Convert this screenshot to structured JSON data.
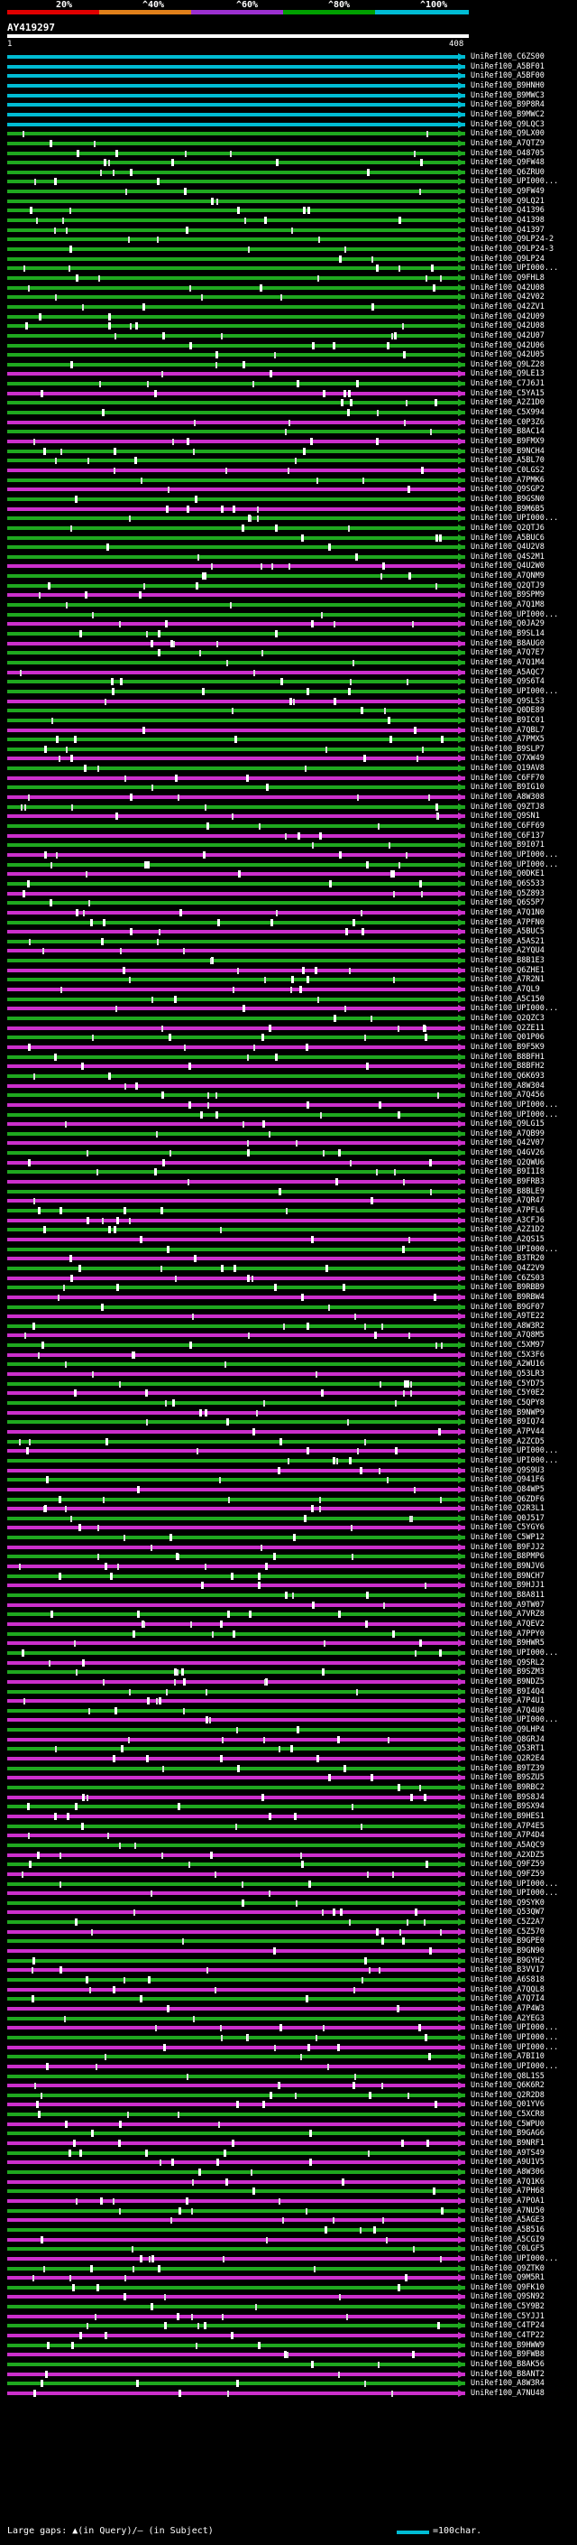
{
  "scale": {
    "labels": [
      "20%",
      "^40%",
      "^60%",
      "^80%",
      "^100%"
    ],
    "colors": [
      "#e00000",
      "#e0801a",
      "#9b30d0",
      "#00a000",
      "#00bcd4"
    ]
  },
  "query": {
    "id": "AY419297",
    "start": "1",
    "end": "408"
  },
  "hit_colors": {
    "cyan": "#00bcd4",
    "green": "#1fa81f",
    "magenta": "#cc2fcc"
  },
  "hits": [
    {
      "name": "UniRef100_C6ZS00",
      "c": "cyan"
    },
    {
      "name": "UniRef100_A5BF01",
      "c": "cyan"
    },
    {
      "name": "UniRef100_A5BF00",
      "c": "cyan"
    },
    {
      "name": "UniRef100_B9HNH0",
      "c": "cyan"
    },
    {
      "name": "UniRef100_B9MWC3",
      "c": "cyan"
    },
    {
      "name": "UniRef100_B9P8R4",
      "c": "cyan"
    },
    {
      "name": "UniRef100_B9MWC2",
      "c": "cyan"
    },
    {
      "name": "UniRef100_Q9LQC3",
      "c": "cyan"
    },
    {
      "name": "UniRef100_Q9LX00",
      "c": "green"
    },
    {
      "name": "UniRef100_A7QTZ9",
      "c": "green"
    },
    {
      "name": "UniRef100_O48705",
      "c": "green"
    },
    {
      "name": "UniRef100_Q9FW48",
      "c": "green"
    },
    {
      "name": "UniRef100_Q6ZRU0",
      "c": "green"
    },
    {
      "name": "UniRef100_UPI000...",
      "c": "green"
    },
    {
      "name": "UniRef100_Q9FW49",
      "c": "green"
    },
    {
      "name": "UniRef100_Q9LQ21",
      "c": "green"
    },
    {
      "name": "UniRef100_Q41396",
      "c": "green"
    },
    {
      "name": "UniRef100_Q41398",
      "c": "green"
    },
    {
      "name": "UniRef100_Q41397",
      "c": "green"
    },
    {
      "name": "UniRef100_Q9LP24-2",
      "c": "green"
    },
    {
      "name": "UniRef100_Q9LP24-3",
      "c": "green"
    },
    {
      "name": "UniRef100_Q9LP24",
      "c": "green"
    },
    {
      "name": "UniRef100_UPI000...",
      "c": "green"
    },
    {
      "name": "UniRef100_Q9FHL8",
      "c": "green"
    },
    {
      "name": "UniRef100_Q42U08",
      "c": "green"
    },
    {
      "name": "UniRef100_Q42V02",
      "c": "green"
    },
    {
      "name": "UniRef100_Q42ZV1",
      "c": "green"
    },
    {
      "name": "UniRef100_Q42U09",
      "c": "green"
    },
    {
      "name": "UniRef100_Q42U08",
      "c": "green"
    },
    {
      "name": "UniRef100_Q42U07",
      "c": "green"
    },
    {
      "name": "UniRef100_Q42U06",
      "c": "green"
    },
    {
      "name": "UniRef100_Q42U05",
      "c": "green"
    },
    {
      "name": "UniRef100_Q9LZ28",
      "c": "green"
    },
    {
      "name": "UniRef100_Q9LE13",
      "c": "magenta"
    },
    {
      "name": "UniRef100_C7J6J1",
      "c": "green"
    },
    {
      "name": "UniRef100_C5YA15",
      "c": "magenta"
    },
    {
      "name": "UniRef100_A2Z1D0",
      "c": "green"
    },
    {
      "name": "UniRef100_C5X994",
      "c": "green"
    },
    {
      "name": "UniRef100_C0P3Z6",
      "c": "magenta"
    },
    {
      "name": "UniRef100_B8AC14",
      "c": "green"
    },
    {
      "name": "UniRef100_B9FMX9",
      "c": "magenta"
    },
    {
      "name": "UniRef100_B9NCH4",
      "c": "green"
    },
    {
      "name": "UniRef100_A5BL70",
      "c": "green"
    },
    {
      "name": "UniRef100_C0LGS2",
      "c": "magenta"
    },
    {
      "name": "UniRef100_A7PMK6",
      "c": "green"
    },
    {
      "name": "UniRef100_Q9SGP2",
      "c": "magenta"
    },
    {
      "name": "UniRef100_B9GSN0",
      "c": "green"
    },
    {
      "name": "UniRef100_B9M6B5",
      "c": "magenta"
    },
    {
      "name": "UniRef100_UPI000...",
      "c": "green"
    },
    {
      "name": "UniRef100_Q2QTJ6",
      "c": "green"
    },
    {
      "name": "UniRef100_A5BUC6",
      "c": "green"
    },
    {
      "name": "UniRef100_Q4U2V8",
      "c": "green"
    },
    {
      "name": "UniRef100_Q4S2M1",
      "c": "green"
    },
    {
      "name": "UniRef100_Q4U2W0",
      "c": "magenta"
    },
    {
      "name": "UniRef100_A7QNM9",
      "c": "green"
    },
    {
      "name": "UniRef100_Q2QTJ9",
      "c": "green"
    },
    {
      "name": "UniRef100_B9SPM9",
      "c": "magenta"
    },
    {
      "name": "UniRef100_A7Q1M8",
      "c": "green"
    },
    {
      "name": "UniRef100_UPI000...",
      "c": "green"
    },
    {
      "name": "UniRef100_Q0JA29",
      "c": "magenta"
    },
    {
      "name": "UniRef100_B9SL14",
      "c": "green"
    },
    {
      "name": "UniRef100_B8AUG0",
      "c": "magenta"
    },
    {
      "name": "UniRef100_A7Q7E7",
      "c": "green"
    },
    {
      "name": "UniRef100_A7Q1M4",
      "c": "green"
    },
    {
      "name": "UniRef100_A5AQC7",
      "c": "magenta"
    },
    {
      "name": "UniRef100_Q9S6T4",
      "c": "green"
    },
    {
      "name": "UniRef100_UPI000...",
      "c": "green"
    },
    {
      "name": "UniRef100_Q9SLS3",
      "c": "magenta"
    },
    {
      "name": "UniRef100_Q0DE89",
      "c": "green"
    },
    {
      "name": "UniRef100_B9IC01",
      "c": "green"
    },
    {
      "name": "UniRef100_A7QBL7",
      "c": "magenta"
    },
    {
      "name": "UniRef100_A7PMX5",
      "c": "green"
    },
    {
      "name": "UniRef100_B9SLP7",
      "c": "green"
    },
    {
      "name": "UniRef100_Q7XW49",
      "c": "magenta"
    },
    {
      "name": "UniRef100_Q19AV8",
      "c": "green"
    },
    {
      "name": "UniRef100_C6FF70",
      "c": "magenta"
    },
    {
      "name": "UniRef100_B9IG10",
      "c": "green"
    },
    {
      "name": "UniRef100_A8W308",
      "c": "magenta"
    },
    {
      "name": "UniRef100_Q9ZTJ8",
      "c": "green"
    },
    {
      "name": "UniRef100_Q9SN1",
      "c": "magenta"
    },
    {
      "name": "UniRef100_C6FF69",
      "c": "green"
    },
    {
      "name": "UniRef100_C6F137",
      "c": "magenta"
    },
    {
      "name": "UniRef100_B9I071",
      "c": "green"
    },
    {
      "name": "UniRef100_UPI000...",
      "c": "magenta"
    },
    {
      "name": "UniRef100_UPI000...",
      "c": "green"
    },
    {
      "name": "UniRef100_Q0DKE1",
      "c": "magenta"
    },
    {
      "name": "UniRef100_Q6S533",
      "c": "green"
    },
    {
      "name": "UniRef100_Q5Z893",
      "c": "magenta"
    },
    {
      "name": "UniRef100_Q6S5P7",
      "c": "green"
    },
    {
      "name": "UniRef100_A7Q1N0",
      "c": "magenta"
    },
    {
      "name": "UniRef100_A7PFN0",
      "c": "green"
    },
    {
      "name": "UniRef100_A5BUC5",
      "c": "magenta"
    },
    {
      "name": "UniRef100_A5AS21",
      "c": "green"
    },
    {
      "name": "UniRef100_A2YQU4",
      "c": "magenta"
    },
    {
      "name": "UniRef100_B8B1E3",
      "c": "green"
    },
    {
      "name": "UniRef100_Q6ZHE1",
      "c": "magenta"
    },
    {
      "name": "UniRef100_A7R2N1",
      "c": "green"
    },
    {
      "name": "UniRef100_A7QL9",
      "c": "magenta"
    },
    {
      "name": "UniRef100_A5C150",
      "c": "green"
    },
    {
      "name": "UniRef100_UPI000...",
      "c": "magenta"
    },
    {
      "name": "UniRef100_Q2QZC3",
      "c": "green"
    },
    {
      "name": "UniRef100_Q2ZE11",
      "c": "magenta"
    },
    {
      "name": "UniRef100_Q01P06",
      "c": "green"
    },
    {
      "name": "UniRef100_B9F5K9",
      "c": "magenta"
    },
    {
      "name": "UniRef100_B8BFH1",
      "c": "green"
    },
    {
      "name": "UniRef100_B8BFH2",
      "c": "magenta"
    },
    {
      "name": "UniRef100_Q6K693",
      "c": "green"
    },
    {
      "name": "UniRef100_A8W304",
      "c": "magenta"
    },
    {
      "name": "UniRef100_A7Q456",
      "c": "green"
    },
    {
      "name": "UniRef100_UPI000...",
      "c": "magenta"
    },
    {
      "name": "UniRef100_UPI000...",
      "c": "green"
    },
    {
      "name": "UniRef100_Q9LG15",
      "c": "magenta"
    },
    {
      "name": "UniRef100_A7QB99",
      "c": "green"
    },
    {
      "name": "UniRef100_Q42V07",
      "c": "magenta"
    },
    {
      "name": "UniRef100_Q4GV26",
      "c": "green"
    },
    {
      "name": "UniRef100_Q2QWU6",
      "c": "magenta"
    },
    {
      "name": "UniRef100_B9I1I8",
      "c": "green"
    },
    {
      "name": "UniRef100_B9FRB3",
      "c": "magenta"
    },
    {
      "name": "UniRef100_B8BLE9",
      "c": "green"
    },
    {
      "name": "UniRef100_A7QR47",
      "c": "magenta"
    },
    {
      "name": "UniRef100_A7PFL6",
      "c": "green"
    },
    {
      "name": "UniRef100_A3CFJ6",
      "c": "magenta"
    },
    {
      "name": "UniRef100_A2Z1D2",
      "c": "green"
    },
    {
      "name": "UniRef100_A2QS15",
      "c": "magenta"
    },
    {
      "name": "UniRef100_UPI000...",
      "c": "green"
    },
    {
      "name": "UniRef100_B3TR20",
      "c": "magenta"
    },
    {
      "name": "UniRef100_Q4Z2V9",
      "c": "green"
    },
    {
      "name": "UniRef100_C6ZS03",
      "c": "magenta"
    },
    {
      "name": "UniRef100_B9RBB9",
      "c": "green"
    },
    {
      "name": "UniRef100_B9RBW4",
      "c": "magenta"
    },
    {
      "name": "UniRef100_B9GF07",
      "c": "green"
    },
    {
      "name": "UniRef100_A9TE22",
      "c": "magenta"
    },
    {
      "name": "UniRef100_A8W3R2",
      "c": "green"
    },
    {
      "name": "UniRef100_A7Q8M5",
      "c": "magenta"
    },
    {
      "name": "UniRef100_C5XM97",
      "c": "green"
    },
    {
      "name": "UniRef100_C5X3F6",
      "c": "magenta"
    },
    {
      "name": "UniRef100_A2WU16",
      "c": "green"
    },
    {
      "name": "UniRef100_Q53LR3",
      "c": "magenta"
    },
    {
      "name": "UniRef100_C5YD75",
      "c": "green"
    },
    {
      "name": "UniRef100_C5Y0E2",
      "c": "magenta"
    },
    {
      "name": "UniRef100_C5QPY8",
      "c": "green"
    },
    {
      "name": "UniRef100_B9NWP9",
      "c": "magenta"
    },
    {
      "name": "UniRef100_B9IQ74",
      "c": "green"
    },
    {
      "name": "UniRef100_A7PV44",
      "c": "magenta"
    },
    {
      "name": "UniRef100_A2ZCD5",
      "c": "green"
    },
    {
      "name": "UniRef100_UPI000...",
      "c": "magenta"
    },
    {
      "name": "UniRef100_UPI000...",
      "c": "green"
    },
    {
      "name": "UniRef100_Q9S9U3",
      "c": "magenta"
    },
    {
      "name": "UniRef100_Q941F6",
      "c": "green"
    },
    {
      "name": "UniRef100_Q84WP5",
      "c": "magenta"
    },
    {
      "name": "UniRef100_Q6ZDF6",
      "c": "green"
    },
    {
      "name": "UniRef100_Q2R3L1",
      "c": "magenta"
    },
    {
      "name": "UniRef100_Q0J517",
      "c": "green"
    },
    {
      "name": "UniRef100_C5YGY6",
      "c": "magenta"
    },
    {
      "name": "UniRef100_C5WP12",
      "c": "green"
    },
    {
      "name": "UniRef100_B9FJJ2",
      "c": "magenta"
    },
    {
      "name": "UniRef100_B8PMP6",
      "c": "green"
    },
    {
      "name": "UniRef100_B9NJV6",
      "c": "magenta"
    },
    {
      "name": "UniRef100_B9NCH7",
      "c": "green"
    },
    {
      "name": "UniRef100_B9HJJ1",
      "c": "magenta"
    },
    {
      "name": "UniRef100_B8A811",
      "c": "green"
    },
    {
      "name": "UniRef100_A9TW07",
      "c": "magenta"
    },
    {
      "name": "UniRef100_A7VRZ8",
      "c": "green"
    },
    {
      "name": "UniRef100_A7QEV2",
      "c": "magenta"
    },
    {
      "name": "UniRef100_A7PPY0",
      "c": "green"
    },
    {
      "name": "UniRef100_B9HWR5",
      "c": "magenta"
    },
    {
      "name": "UniRef100_UPI000...",
      "c": "green"
    },
    {
      "name": "UniRef100_Q9SRL2",
      "c": "magenta"
    },
    {
      "name": "UniRef100_B9SZM3",
      "c": "green"
    },
    {
      "name": "UniRef100_B9NDZ5",
      "c": "magenta"
    },
    {
      "name": "UniRef100_B9I4Q4",
      "c": "green"
    },
    {
      "name": "UniRef100_A7P4U1",
      "c": "magenta"
    },
    {
      "name": "UniRef100_A7Q4U0",
      "c": "green"
    },
    {
      "name": "UniRef100_UPI000...",
      "c": "magenta"
    },
    {
      "name": "UniRef100_Q9LHP4",
      "c": "green"
    },
    {
      "name": "UniRef100_Q8GRJ4",
      "c": "magenta"
    },
    {
      "name": "UniRef100_Q53RT1",
      "c": "green"
    },
    {
      "name": "UniRef100_Q2R2E4",
      "c": "magenta"
    },
    {
      "name": "UniRef100_B9TZ39",
      "c": "green"
    },
    {
      "name": "UniRef100_B9SZU5",
      "c": "magenta"
    },
    {
      "name": "UniRef100_B9RBC2",
      "c": "green"
    },
    {
      "name": "UniRef100_B9S8J4",
      "c": "magenta"
    },
    {
      "name": "UniRef100_B9SX94",
      "c": "green"
    },
    {
      "name": "UniRef100_B9HES1",
      "c": "magenta"
    },
    {
      "name": "UniRef100_A7P4E5",
      "c": "green"
    },
    {
      "name": "UniRef100_A7P4D4",
      "c": "magenta"
    },
    {
      "name": "UniRef100_A5AQC9",
      "c": "green"
    },
    {
      "name": "UniRef100_A2XDZ5",
      "c": "magenta"
    },
    {
      "name": "UniRef100_Q9FZ59",
      "c": "green"
    },
    {
      "name": "UniRef100_Q9FZ59",
      "c": "magenta"
    },
    {
      "name": "UniRef100_UPI000...",
      "c": "green"
    },
    {
      "name": "UniRef100_UPI000...",
      "c": "magenta"
    },
    {
      "name": "UniRef100_Q9SYK0",
      "c": "green"
    },
    {
      "name": "UniRef100_Q53QW7",
      "c": "magenta"
    },
    {
      "name": "UniRef100_C5Z2A7",
      "c": "green"
    },
    {
      "name": "UniRef100_C5Z570",
      "c": "magenta"
    },
    {
      "name": "UniRef100_B9GPE0",
      "c": "green"
    },
    {
      "name": "UniRef100_B9GN90",
      "c": "magenta"
    },
    {
      "name": "UniRef100_B9GYH2",
      "c": "green"
    },
    {
      "name": "UniRef100_B3VV17",
      "c": "magenta"
    },
    {
      "name": "UniRef100_A6S818",
      "c": "green"
    },
    {
      "name": "UniRef100_A7QQL8",
      "c": "magenta"
    },
    {
      "name": "UniRef100_A7Q7I4",
      "c": "green"
    },
    {
      "name": "UniRef100_A7P4W3",
      "c": "magenta"
    },
    {
      "name": "UniRef100_A2YEG3",
      "c": "green"
    },
    {
      "name": "UniRef100_UPI000...",
      "c": "magenta"
    },
    {
      "name": "UniRef100_UPI000...",
      "c": "green"
    },
    {
      "name": "UniRef100_UPI000...",
      "c": "magenta"
    },
    {
      "name": "UniRef100_A7BI10",
      "c": "green"
    },
    {
      "name": "UniRef100_UPI000...",
      "c": "magenta"
    },
    {
      "name": "UniRef100_Q8L1S5",
      "c": "green"
    },
    {
      "name": "UniRef100_Q6K6R2",
      "c": "magenta"
    },
    {
      "name": "UniRef100_Q2R2D8",
      "c": "green"
    },
    {
      "name": "UniRef100_Q01YV6",
      "c": "magenta"
    },
    {
      "name": "UniRef100_C5XCR8",
      "c": "green"
    },
    {
      "name": "UniRef100_C5WPU0",
      "c": "magenta"
    },
    {
      "name": "UniRef100_B9GAG6",
      "c": "green"
    },
    {
      "name": "UniRef100_B9NRF1",
      "c": "magenta"
    },
    {
      "name": "UniRef100_A9TS49",
      "c": "green"
    },
    {
      "name": "UniRef100_A9U1V5",
      "c": "magenta"
    },
    {
      "name": "UniRef100_A8W306",
      "c": "green"
    },
    {
      "name": "UniRef100_A7Q1K6",
      "c": "magenta"
    },
    {
      "name": "UniRef100_A7PH68",
      "c": "green"
    },
    {
      "name": "UniRef100_A7POA1",
      "c": "magenta"
    },
    {
      "name": "UniRef100_A7NU50",
      "c": "green"
    },
    {
      "name": "UniRef100_A5AGE3",
      "c": "magenta"
    },
    {
      "name": "UniRef100_A5B516",
      "c": "green"
    },
    {
      "name": "UniRef100_A5CGI9",
      "c": "magenta"
    },
    {
      "name": "UniRef100_C0LGF5",
      "c": "green"
    },
    {
      "name": "UniRef100_UPI000...",
      "c": "magenta"
    },
    {
      "name": "UniRef100_Q9ZTK0",
      "c": "green"
    },
    {
      "name": "UniRef100_Q9M5R1",
      "c": "magenta"
    },
    {
      "name": "UniRef100_Q9FK10",
      "c": "green"
    },
    {
      "name": "UniRef100_Q9SN92",
      "c": "magenta"
    },
    {
      "name": "UniRef100_C5Y9B2",
      "c": "green"
    },
    {
      "name": "UniRef100_C5YJJ1",
      "c": "magenta"
    },
    {
      "name": "UniRef100_C4TP24",
      "c": "green"
    },
    {
      "name": "UniRef100_C4TP22",
      "c": "magenta"
    },
    {
      "name": "UniRef100_B9HWW9",
      "c": "green"
    },
    {
      "name": "UniRef100_B9FWB8",
      "c": "magenta"
    },
    {
      "name": "UniRef100_B8AK56",
      "c": "green"
    },
    {
      "name": "UniRef100_B8ANT2",
      "c": "magenta"
    },
    {
      "name": "UniRef100_A8W3R4",
      "c": "green"
    },
    {
      "name": "UniRef100_A7NU48",
      "c": "magenta"
    }
  ],
  "footer": {
    "legend": "Large gaps: ▲(in Query)/– (in Subject)",
    "scale_label": "=100char."
  }
}
